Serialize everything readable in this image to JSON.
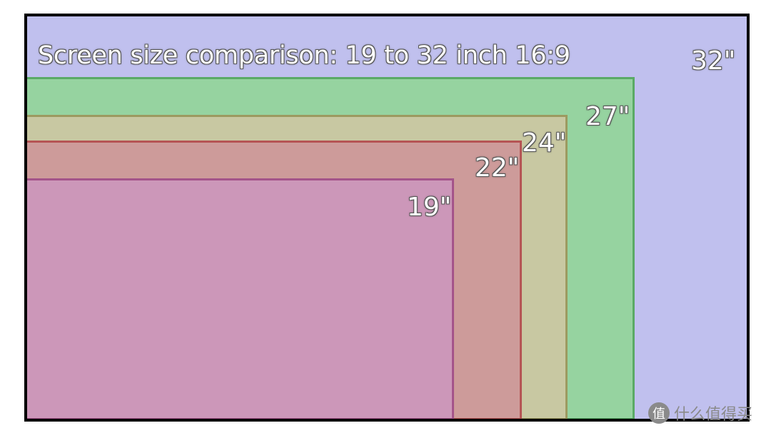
{
  "title": "Screen size comparison: 19 to 32 inch 16:9",
  "screens": [
    {
      "label": "32\"",
      "fill": "#c0c0ee",
      "stroke": "#000000"
    },
    {
      "label": "27\"",
      "fill": "#96d3a0",
      "stroke": "#5aaa66"
    },
    {
      "label": "24\"",
      "fill": "#c8c8a2",
      "stroke": "#9c9a60"
    },
    {
      "label": "22\"",
      "fill": "#cd9b9a",
      "stroke": "#b55454"
    },
    {
      "label": "19\"",
      "fill": "#cc97b9",
      "stroke": "#a4548a"
    }
  ],
  "watermark": {
    "icon": "zhi-value-logo-icon",
    "icon_char": "值",
    "text": "什么值得买"
  }
}
